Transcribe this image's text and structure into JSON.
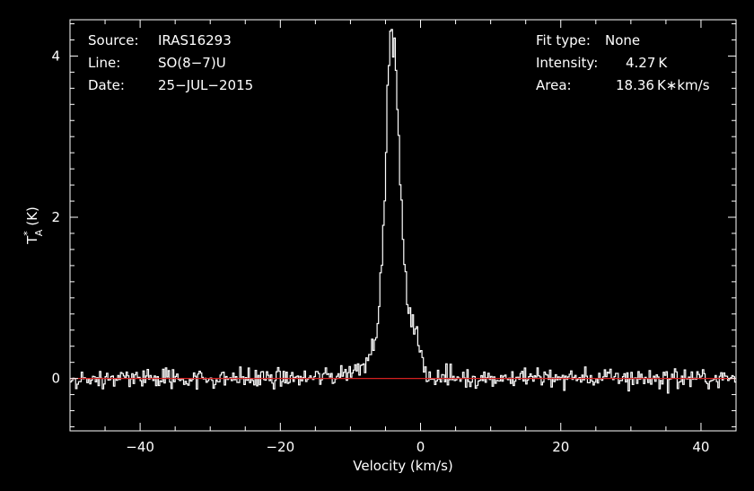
{
  "chart_data": {
    "type": "line",
    "xlabel": "Velocity (km/s)",
    "ylabel_main": "T",
    "ylabel_sup": "*",
    "ylabel_sub": "A",
    "ylabel_unit": "(K)",
    "xlim": [
      -50,
      45
    ],
    "ylim": [
      -0.65,
      4.45
    ],
    "x_ticks": [
      -40,
      -20,
      0,
      20,
      40
    ],
    "x_tick_labels": [
      "−40",
      "−20",
      "0",
      "20",
      "40"
    ],
    "y_ticks": [
      0,
      2,
      4
    ],
    "y_tick_labels": [
      "0",
      "2",
      "4"
    ],
    "baseline": 0,
    "line_color": "#ffffff",
    "baseline_color": "#d42020",
    "profile": {
      "x": [
        -50,
        -16,
        -12,
        -9,
        -7,
        -6,
        -5.5,
        -5,
        -4.7,
        -4.4,
        -4,
        -3.6,
        -3.2,
        -2.8,
        -2.3,
        -2,
        -1.5,
        -1,
        -0.5,
        0,
        0.5,
        1,
        2,
        45
      ],
      "y": [
        0,
        0,
        0.04,
        0.12,
        0.33,
        0.8,
        1.4,
        2.5,
        3.5,
        4.25,
        4.28,
        4.0,
        3.1,
        2.3,
        1.4,
        1.0,
        0.85,
        0.7,
        0.5,
        0.3,
        0.15,
        0.06,
        0.01,
        0
      ]
    },
    "noise_amplitude": 0.11
  },
  "info": {
    "left": [
      {
        "label": "Source:",
        "value": "IRAS16293"
      },
      {
        "label": "Line:",
        "value": "SO(8−7)U"
      },
      {
        "label": "Date:",
        "value": "25−JUL−2015"
      }
    ],
    "right": [
      {
        "label": "Fit type:",
        "value": "None"
      },
      {
        "label": "Intensity:",
        "value": "4.27 K"
      },
      {
        "label": "Area:",
        "value": "18.36 K∗km/s"
      }
    ]
  }
}
